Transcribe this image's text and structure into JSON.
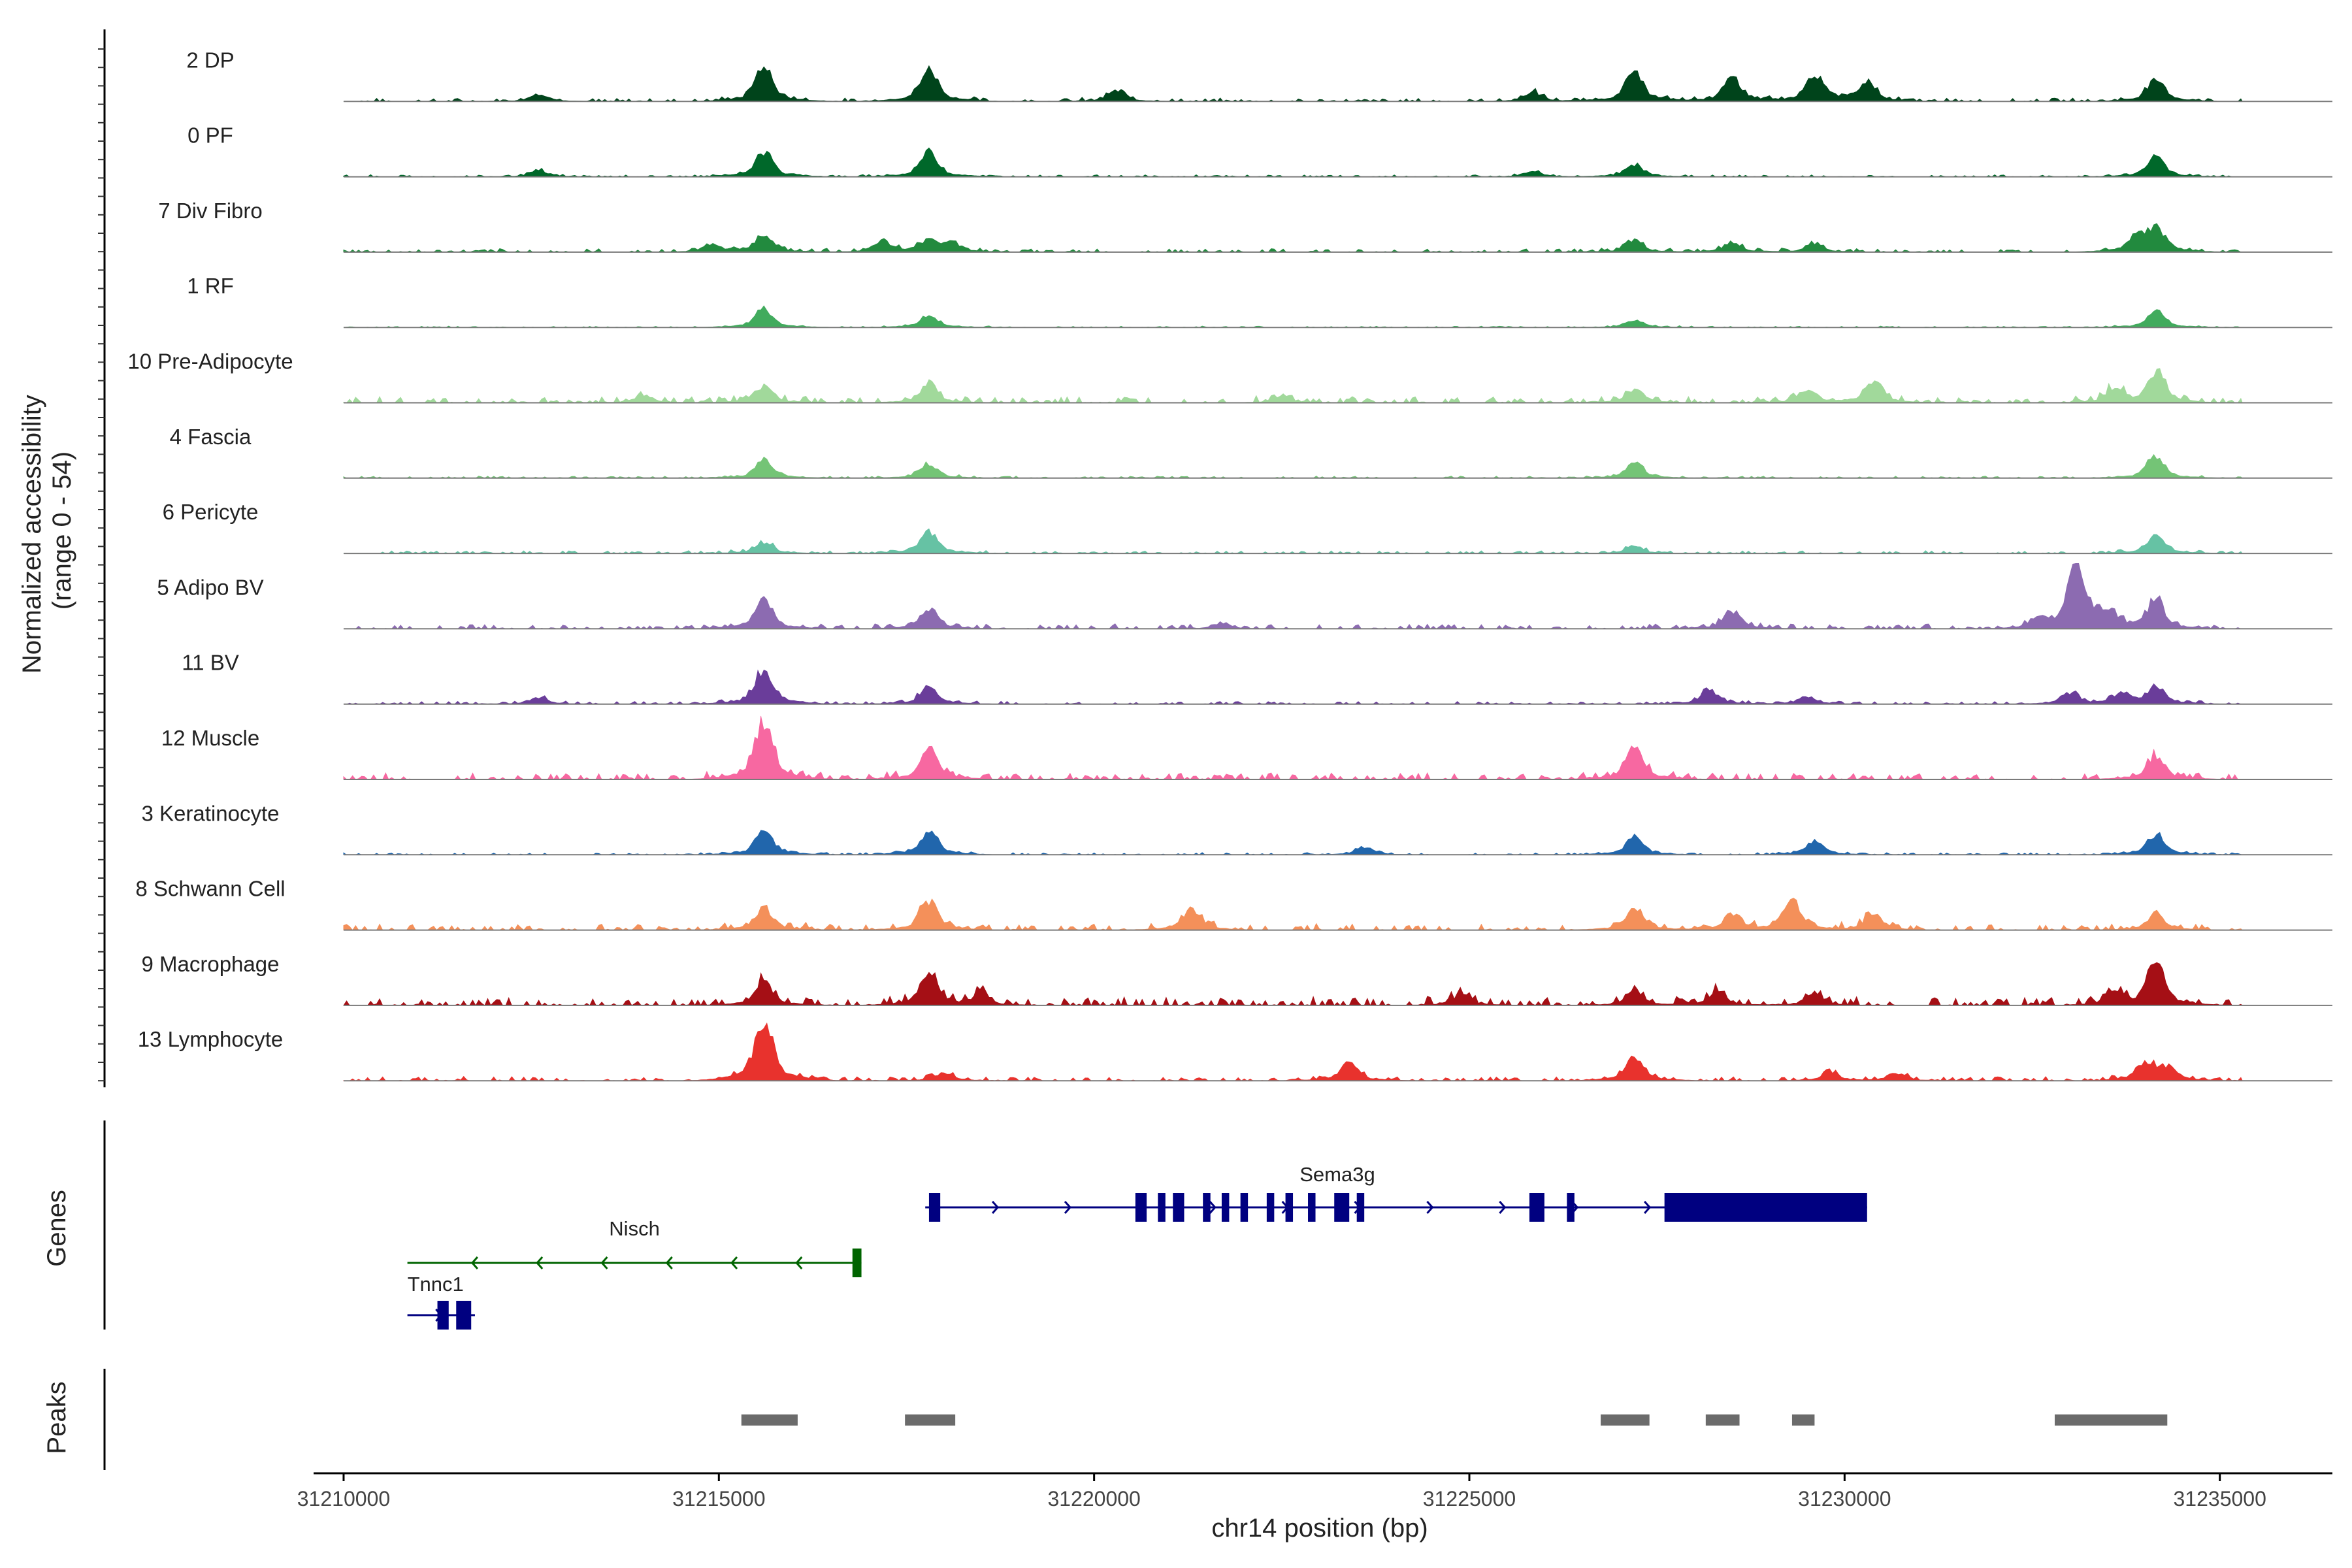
{
  "chart_data": {
    "type": "area",
    "title": "",
    "xlabel": "chr14 position (bp)",
    "ylabel": "Normalized accessibility\n(range 0 - 54)",
    "xlim": [
      31209600,
      31236500
    ],
    "ylim": [
      0,
      54
    ],
    "x_ticks": [
      31210000,
      31215000,
      31220000,
      31225000,
      31230000,
      31235000
    ],
    "x_tick_labels": [
      "31210000",
      "31215000",
      "31220000",
      "31225000",
      "31230000",
      "31235000"
    ],
    "coverage_extent": [
      31210000,
      31235300
    ],
    "series": [
      {
        "name": "2 DP",
        "color": "#00441b",
        "noise": 0.05,
        "peaks": [
          [
            31212600,
            0.1
          ],
          [
            31215600,
            0.45
          ],
          [
            31217800,
            0.42
          ],
          [
            31220300,
            0.14
          ],
          [
            31225850,
            0.12
          ],
          [
            31227200,
            0.38
          ],
          [
            31228500,
            0.3
          ],
          [
            31229600,
            0.36
          ],
          [
            31230300,
            0.26
          ],
          [
            31234150,
            0.3
          ]
        ]
      },
      {
        "name": "0 PF",
        "color": "#00682a",
        "noise": 0.03,
        "peaks": [
          [
            31212600,
            0.08
          ],
          [
            31215600,
            0.32
          ],
          [
            31217800,
            0.33
          ],
          [
            31225850,
            0.07
          ],
          [
            31227200,
            0.16
          ],
          [
            31234150,
            0.26
          ]
        ]
      },
      {
        "name": "7 Div Fibro",
        "color": "#228a3e",
        "noise": 0.05,
        "peaks": [
          [
            31214900,
            0.1
          ],
          [
            31215600,
            0.22
          ],
          [
            31217200,
            0.12
          ],
          [
            31217800,
            0.15
          ],
          [
            31218100,
            0.12
          ],
          [
            31227200,
            0.15
          ],
          [
            31228500,
            0.12
          ],
          [
            31229600,
            0.1
          ],
          [
            31233900,
            0.2
          ],
          [
            31234150,
            0.28
          ]
        ]
      },
      {
        "name": "1 RF",
        "color": "#41ab5d",
        "noise": 0.02,
        "peaks": [
          [
            31215600,
            0.24
          ],
          [
            31217800,
            0.16
          ],
          [
            31227200,
            0.1
          ],
          [
            31234150,
            0.22
          ]
        ]
      },
      {
        "name": "10 Pre-Adipocyte",
        "color": "#a1d99b",
        "noise": 0.09,
        "peaks": [
          [
            31214000,
            0.1
          ],
          [
            31215600,
            0.22
          ],
          [
            31217800,
            0.24
          ],
          [
            31222500,
            0.08
          ],
          [
            31227200,
            0.18
          ],
          [
            31229500,
            0.18
          ],
          [
            31230400,
            0.28
          ],
          [
            31233600,
            0.18
          ],
          [
            31234150,
            0.4
          ]
        ]
      },
      {
        "name": "4 Fascia",
        "color": "#74c476",
        "noise": 0.03,
        "peaks": [
          [
            31215600,
            0.24
          ],
          [
            31217800,
            0.18
          ],
          [
            31227200,
            0.2
          ],
          [
            31234150,
            0.28
          ]
        ]
      },
      {
        "name": "6 Pericyte",
        "color": "#66c2a4",
        "noise": 0.04,
        "peaks": [
          [
            31215600,
            0.15
          ],
          [
            31217800,
            0.28
          ],
          [
            31227200,
            0.09
          ],
          [
            31234150,
            0.24
          ]
        ]
      },
      {
        "name": "5 Adipo BV",
        "color": "#8c6bb1",
        "noise": 0.07,
        "peaks": [
          [
            31215600,
            0.38
          ],
          [
            31217800,
            0.26
          ],
          [
            31221700,
            0.07
          ],
          [
            31228500,
            0.24
          ],
          [
            31232600,
            0.12
          ],
          [
            31233100,
            0.88
          ],
          [
            31233500,
            0.18
          ],
          [
            31234150,
            0.36
          ]
        ]
      },
      {
        "name": "11 BV",
        "color": "#6a3d9a",
        "noise": 0.04,
        "peaks": [
          [
            31212600,
            0.08
          ],
          [
            31215600,
            0.45
          ],
          [
            31217800,
            0.22
          ],
          [
            31228200,
            0.18
          ],
          [
            31229500,
            0.1
          ],
          [
            31233000,
            0.14
          ],
          [
            31233700,
            0.14
          ],
          [
            31234150,
            0.22
          ]
        ]
      },
      {
        "name": "12 Muscle",
        "color": "#f768a1",
        "noise": 0.1,
        "peaks": [
          [
            31215600,
            0.74
          ],
          [
            31217800,
            0.4
          ],
          [
            31227200,
            0.45
          ],
          [
            31234150,
            0.32
          ]
        ]
      },
      {
        "name": "3 Keratinocyte",
        "color": "#2166ac",
        "noise": 0.03,
        "peaks": [
          [
            31215600,
            0.3
          ],
          [
            31217800,
            0.3
          ],
          [
            31223600,
            0.1
          ],
          [
            31227200,
            0.22
          ],
          [
            31229600,
            0.18
          ],
          [
            31234150,
            0.26
          ]
        ]
      },
      {
        "name": "8 Schwann Cell",
        "color": "#f4905a",
        "noise": 0.09,
        "peaks": [
          [
            31215600,
            0.3
          ],
          [
            31217800,
            0.38
          ],
          [
            31221300,
            0.28
          ],
          [
            31227200,
            0.28
          ],
          [
            31228500,
            0.2
          ],
          [
            31229300,
            0.38
          ],
          [
            31230400,
            0.2
          ],
          [
            31234150,
            0.2
          ]
        ]
      },
      {
        "name": "9 Macrophage",
        "color": "#a50f15",
        "noise": 0.12,
        "peaks": [
          [
            31215600,
            0.32
          ],
          [
            31217800,
            0.4
          ],
          [
            31218500,
            0.14
          ],
          [
            31224900,
            0.14
          ],
          [
            31227200,
            0.18
          ],
          [
            31228300,
            0.18
          ],
          [
            31229600,
            0.14
          ],
          [
            31233600,
            0.18
          ],
          [
            31234150,
            0.56
          ]
        ]
      },
      {
        "name": "13 Lymphocyte",
        "color": "#e8322d",
        "noise": 0.06,
        "peaks": [
          [
            31215600,
            0.8
          ],
          [
            31218000,
            0.1
          ],
          [
            31223400,
            0.24
          ],
          [
            31227200,
            0.3
          ],
          [
            31229800,
            0.1
          ],
          [
            31230700,
            0.1
          ],
          [
            31234000,
            0.2
          ],
          [
            31234300,
            0.18
          ]
        ]
      }
    ],
    "genes_label": "Genes",
    "genes": [
      {
        "name": "Sema3g",
        "strand": "+",
        "color": "#000080",
        "start": 31217750,
        "end": 31230300,
        "row": 0,
        "exons": [
          [
            31217800,
            31217950
          ],
          [
            31220550,
            31220700
          ],
          [
            31220850,
            31220950
          ],
          [
            31221050,
            31221200
          ],
          [
            31221450,
            31221550
          ],
          [
            31221700,
            31221800
          ],
          [
            31221950,
            31222050
          ],
          [
            31222300,
            31222400
          ],
          [
            31222550,
            31222650
          ],
          [
            31222850,
            31222950
          ],
          [
            31223200,
            31223400
          ],
          [
            31223500,
            31223600
          ],
          [
            31225800,
            31226000
          ],
          [
            31226300,
            31226400
          ],
          [
            31227600,
            31230300
          ]
        ]
      },
      {
        "name": "Nisch",
        "strand": "-",
        "color": "#006400",
        "start": 31210850,
        "end": 31216900,
        "row": 1,
        "exons": [
          [
            31216780,
            31216900
          ]
        ]
      },
      {
        "name": "Tnnc1",
        "strand": "+",
        "color": "#000080",
        "start": 31210850,
        "end": 31211750,
        "row": 2,
        "exons": [
          [
            31211250,
            31211400
          ],
          [
            31211500,
            31211700
          ]
        ]
      }
    ],
    "peaks_label": "Peaks",
    "peaks_color": "#6b6b6b",
    "peaks": [
      [
        31215300,
        31216050
      ],
      [
        31217480,
        31218150
      ],
      [
        31226750,
        31227400
      ],
      [
        31228150,
        31228600
      ],
      [
        31229300,
        31229600
      ],
      [
        31232800,
        31234300
      ]
    ]
  }
}
